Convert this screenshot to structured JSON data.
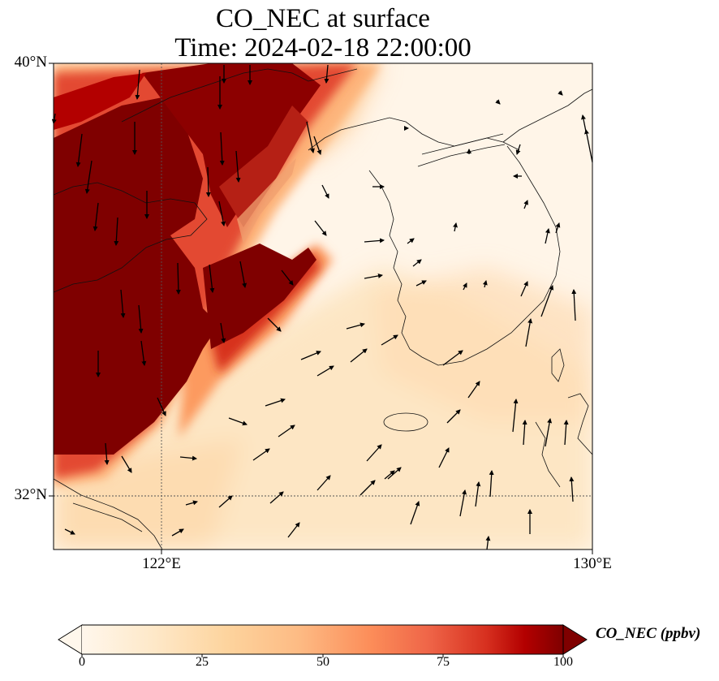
{
  "title": {
    "line1": "CO_NEC at surface",
    "line2": "Time: 2024-02-18 22:00:00"
  },
  "map": {
    "variable": "CO_NEC",
    "level": "surface",
    "lon_range": [
      120,
      130
    ],
    "lat_range": [
      31,
      40
    ],
    "lat_ticks": [
      {
        "value": 40,
        "label": "40°N"
      },
      {
        "value": 32,
        "label": "32°N"
      }
    ],
    "lon_ticks": [
      {
        "value": 122,
        "label": "122°E"
      },
      {
        "value": 130,
        "label": "130°E"
      }
    ],
    "gridlines": [
      {
        "lon": 122
      },
      {
        "lat": 32
      }
    ],
    "colormap": "OrRd",
    "colors": {
      "low": "#fff7ec",
      "mid_low": "#fdd49e",
      "mid": "#fc8d59",
      "high": "#d7301f",
      "max": "#7f0000"
    },
    "wind_arrows": "present"
  },
  "colorbar": {
    "label": "CO_NEC (ppbv)",
    "min": 0,
    "max": 100,
    "extend": "both",
    "ticks": [
      {
        "value": 0,
        "label": "0"
      },
      {
        "value": 25,
        "label": "25"
      },
      {
        "value": 50,
        "label": "50"
      },
      {
        "value": 75,
        "label": "75"
      },
      {
        "value": 100,
        "label": "100"
      }
    ]
  }
}
